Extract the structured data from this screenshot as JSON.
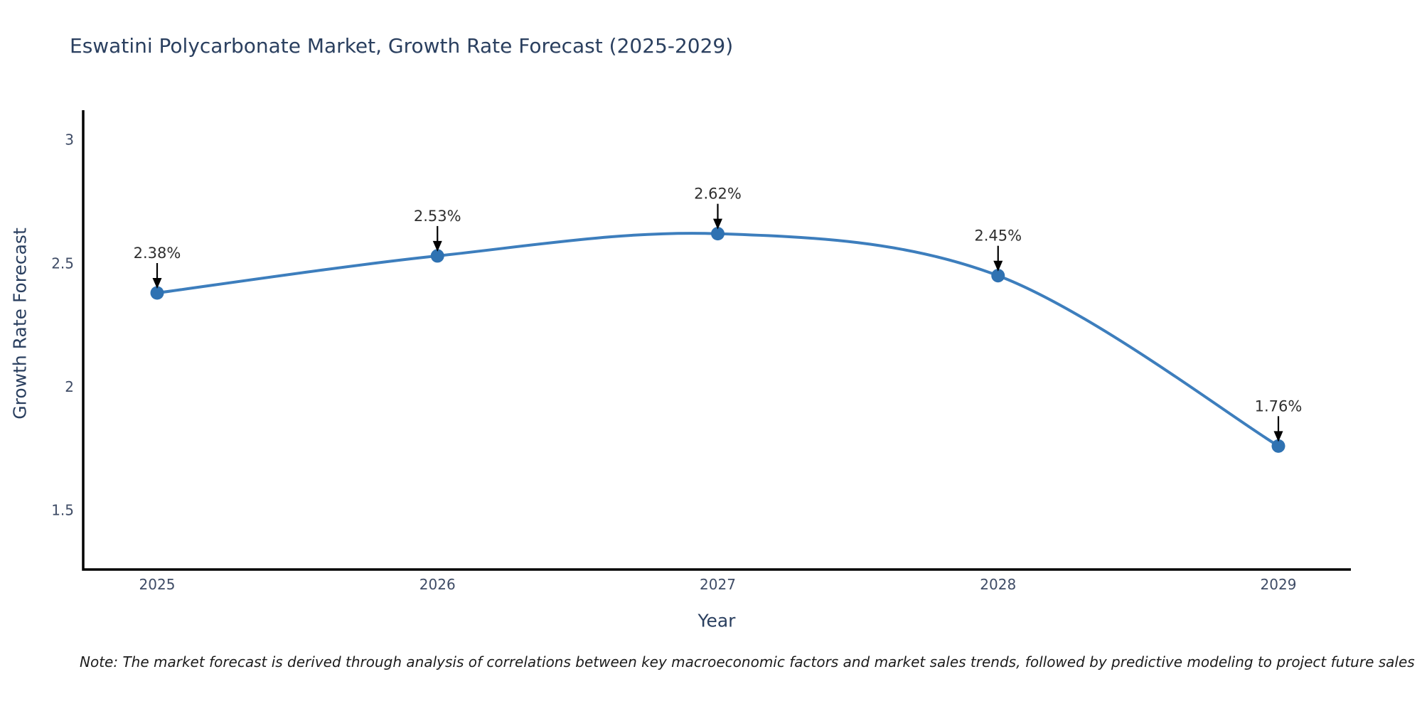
{
  "title": "Eswatini Polycarbonate Market, Growth Rate Forecast (2025-2029)",
  "note": "Note: The market forecast is derived through analysis of correlations between key macroeconomic factors and market sales trends, followed by predictive modeling to project future sales",
  "chart_data": {
    "type": "line",
    "title": "Eswatini Polycarbonate Market, Growth Rate Forecast (2025-2029)",
    "xlabel": "Year",
    "ylabel": "Growth Rate Forecast",
    "categories": [
      "2025",
      "2026",
      "2027",
      "2028",
      "2029"
    ],
    "values": [
      2.38,
      2.53,
      2.62,
      2.45,
      1.76
    ],
    "point_labels": [
      "2.38%",
      "2.53%",
      "2.62%",
      "2.45%",
      "1.76%"
    ],
    "yticks": [
      1.5,
      2,
      2.5,
      3
    ],
    "ylim": [
      1.26,
      3.12
    ],
    "line_shape": "spline",
    "grid": false,
    "legend": "none",
    "colors": {
      "line": "#3d7ebd",
      "marker": "#2f72b2",
      "axis": "#000000",
      "title": "#2a3f5f",
      "tick": "#3f4c66",
      "annotation": "#2f2f2f",
      "arrow": "#000000",
      "background": "#ffffff"
    }
  }
}
